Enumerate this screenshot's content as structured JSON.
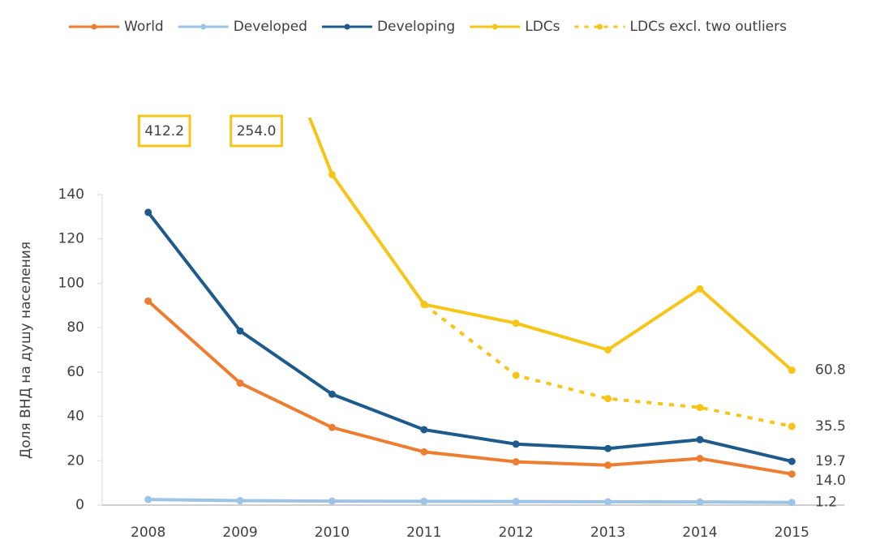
{
  "chart_data": {
    "type": "line",
    "y_label": "Доля ВНД на душу населения",
    "categories": [
      "2008",
      "2009",
      "2010",
      "2011",
      "2012",
      "2013",
      "2014",
      "2015"
    ],
    "series": [
      {
        "name": "World",
        "color": "#ed7d31",
        "values": [
          92,
          55,
          35,
          24,
          19.5,
          18,
          21,
          14.0
        ],
        "value_labels": [
          null,
          null,
          null,
          null,
          null,
          null,
          null,
          "14.0"
        ]
      },
      {
        "name": "Developed",
        "color": "#9dc3e6",
        "values": [
          2.5,
          2,
          1.8,
          1.7,
          1.6,
          1.5,
          1.4,
          1.2
        ],
        "value_labels": [
          null,
          null,
          null,
          null,
          null,
          null,
          null,
          "1.2"
        ]
      },
      {
        "name": "Developing",
        "color": "#1f5a8c",
        "values": [
          132,
          78.5,
          50,
          34,
          27.5,
          25.5,
          29.5,
          19.7
        ],
        "value_labels": [
          null,
          null,
          null,
          null,
          null,
          null,
          null,
          "19.7"
        ]
      },
      {
        "name": "LDCs",
        "color": "#f5c518",
        "values": [
          412.2,
          254.0,
          149,
          90.5,
          82,
          70,
          97.5,
          60.8
        ],
        "value_labels": [
          "412.2",
          "254.0",
          null,
          null,
          null,
          null,
          null,
          "60.8"
        ]
      },
      {
        "name": "LDCs excl. two outliers",
        "color": "#f5c518",
        "dashed": true,
        "values": [
          null,
          null,
          null,
          90.5,
          58.5,
          48,
          44,
          35.5
        ],
        "value_labels": [
          null,
          null,
          null,
          null,
          null,
          null,
          null,
          "35.5"
        ]
      }
    ],
    "ylim": [
      0,
      140
    ],
    "yticks": [
      0,
      20,
      40,
      60,
      80,
      100,
      120,
      140
    ],
    "grid": false,
    "legend": "top"
  }
}
